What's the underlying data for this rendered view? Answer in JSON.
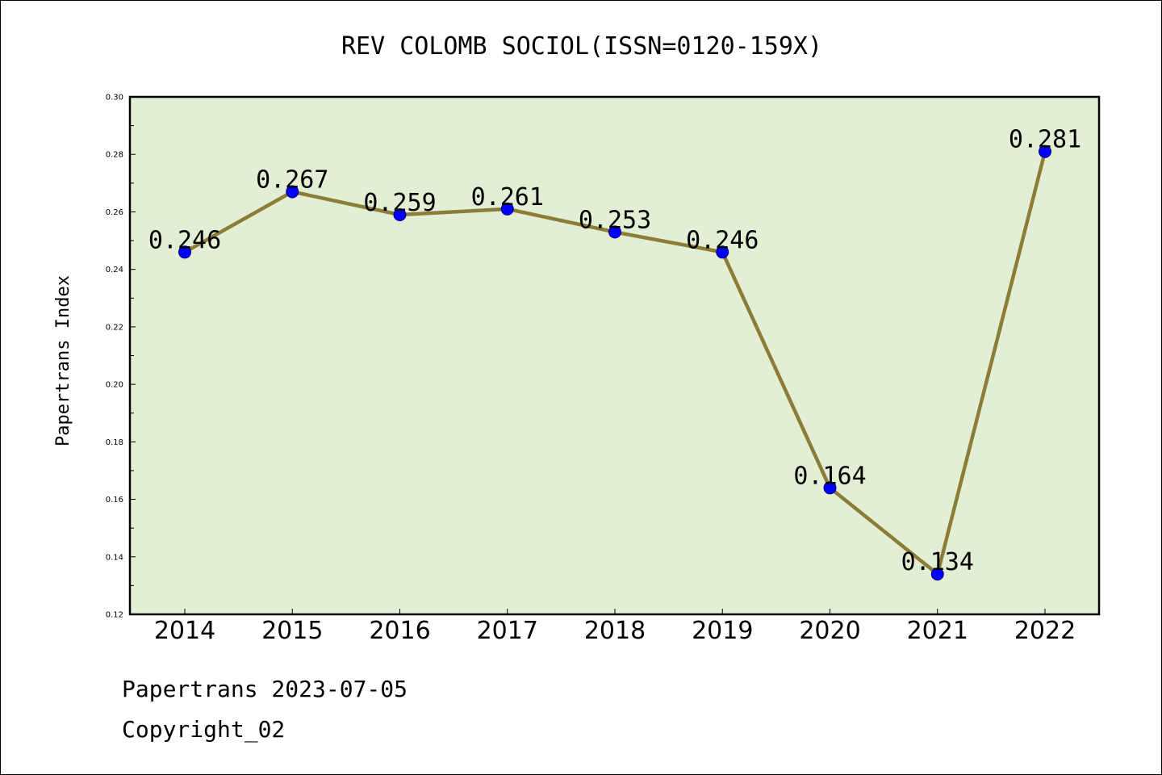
{
  "footer": {
    "line1": "Papertrans 2023-07-05",
    "line2": "Copyright_02"
  },
  "chart_data": {
    "type": "line",
    "title": "REV COLOMB SOCIOL(ISSN=0120-159X)",
    "xlabel": "",
    "ylabel": "Papertrans Index",
    "categories": [
      "2014",
      "2015",
      "2016",
      "2017",
      "2018",
      "2019",
      "2020",
      "2021",
      "2022"
    ],
    "series": [
      {
        "values": [
          0.246,
          0.267,
          0.259,
          0.261,
          0.253,
          0.246,
          0.164,
          0.134,
          0.281
        ],
        "labels": [
          "0.246",
          "0.267",
          "0.259",
          "0.261",
          "0.253",
          "0.246",
          "0.164",
          "0.134",
          "0.281"
        ]
      }
    ],
    "ylim": [
      0.12,
      0.3
    ],
    "yticks": [
      "0.12",
      "0.14",
      "0.16",
      "0.18",
      "0.20",
      "0.22",
      "0.24",
      "0.26",
      "0.28",
      "0.30"
    ],
    "grid": false,
    "legend": "none",
    "colors": {
      "plot_background": "#e2efd4",
      "line": "#8b7d38",
      "marker_fill": "#0000ff",
      "marker_edge": "#00007a",
      "axis": "#000000"
    }
  }
}
